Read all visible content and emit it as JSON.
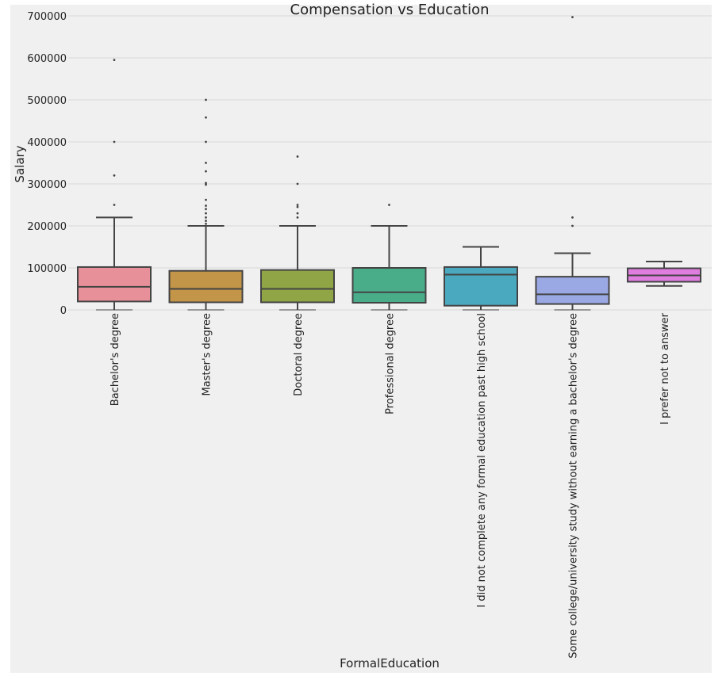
{
  "chart_data": {
    "type": "box",
    "title": "Compensation vs Education",
    "xlabel": "FormalEducation",
    "ylabel": "Salary",
    "ylim": [
      0,
      700000
    ],
    "yticks": [
      0,
      100000,
      200000,
      300000,
      400000,
      500000,
      600000,
      700000
    ],
    "grid": true,
    "categories": [
      "Bachelor's degree",
      "Master's degree",
      "Doctoral degree",
      "Professional degree",
      "I did not complete any formal education past high school",
      "Some college/university study without earning a bachelor's degree",
      "I prefer not to answer"
    ],
    "boxes": [
      {
        "min": 0,
        "q1": 20000,
        "median": 55000,
        "q3": 102000,
        "max": 220000,
        "outliers": [
          250000,
          320000,
          400000,
          595000
        ],
        "color": "#e8909a"
      },
      {
        "min": 0,
        "q1": 18000,
        "median": 50000,
        "q3": 93000,
        "max": 200000,
        "outliers": [
          205000,
          212000,
          220000,
          230000,
          240000,
          248000,
          262000,
          298000,
          302000,
          330000,
          350000,
          400000,
          458000,
          500000
        ],
        "color": "#c29548"
      },
      {
        "min": 0,
        "q1": 18000,
        "median": 50000,
        "q3": 95000,
        "max": 200000,
        "outliers": [
          220000,
          230000,
          245000,
          250000,
          300000,
          365000
        ],
        "color": "#8fa546"
      },
      {
        "min": 0,
        "q1": 17000,
        "median": 42000,
        "q3": 100000,
        "max": 200000,
        "outliers": [
          250000
        ],
        "color": "#4aad8a"
      },
      {
        "min": 0,
        "q1": 10000,
        "median": 84000,
        "q3": 102000,
        "max": 150000,
        "outliers": [],
        "color": "#4aa8bf"
      },
      {
        "min": 0,
        "q1": 14000,
        "median": 37000,
        "q3": 79000,
        "max": 135000,
        "outliers": [
          200000,
          220000,
          697000
        ],
        "color": "#9aa8e3"
      },
      {
        "min": 57000,
        "q1": 67000,
        "median": 82000,
        "q3": 99000,
        "max": 115000,
        "outliers": [],
        "color": "#e07ee0"
      }
    ]
  }
}
